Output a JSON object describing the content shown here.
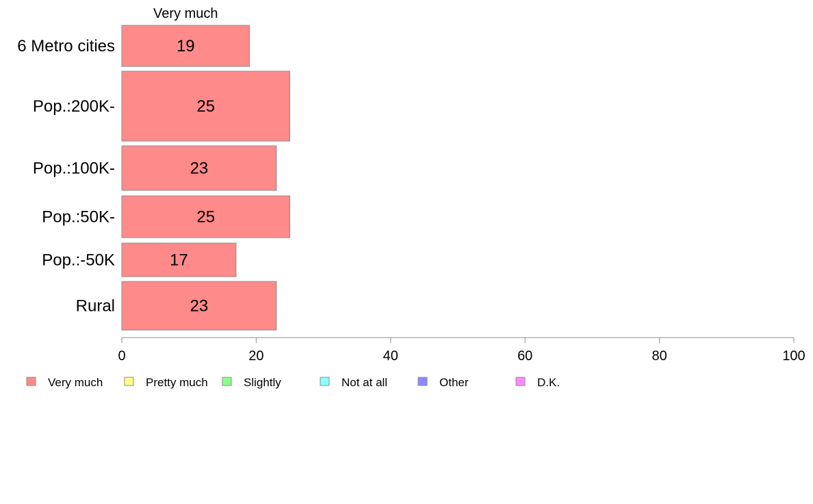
{
  "chart_data": {
    "type": "bar",
    "orientation": "horizontal",
    "stacked": true,
    "header": "Very much",
    "categories": [
      "6 Metro cities",
      "Pop.:200K-",
      "Pop.:100K-",
      "Pop.:50K-",
      "Pop.:-50K",
      "Rural"
    ],
    "series": [
      {
        "name": "Very much",
        "color": "#ff8a8a",
        "values": [
          19,
          25,
          23,
          25,
          17,
          23
        ]
      }
    ],
    "bar_labels": [
      "19",
      "25",
      "23",
      "25",
      "17",
      "23"
    ],
    "xlim": [
      0,
      100
    ],
    "xticks": [
      0,
      20,
      40,
      60,
      80,
      100
    ],
    "xtick_labels": [
      "0",
      "20",
      "40",
      "60",
      "80",
      "100"
    ],
    "legend": [
      {
        "label": "Very much",
        "color": "#ff8a8a"
      },
      {
        "label": "Pretty much",
        "color": "#ffff8a"
      },
      {
        "label": "Slightly",
        "color": "#8aff8a"
      },
      {
        "label": "Not at all",
        "color": "#8affff"
      },
      {
        "label": "Other",
        "color": "#8a8aff"
      },
      {
        "label": "D.K.",
        "color": "#ff8aff"
      }
    ],
    "legend_position": "bottom",
    "grid": false
  }
}
